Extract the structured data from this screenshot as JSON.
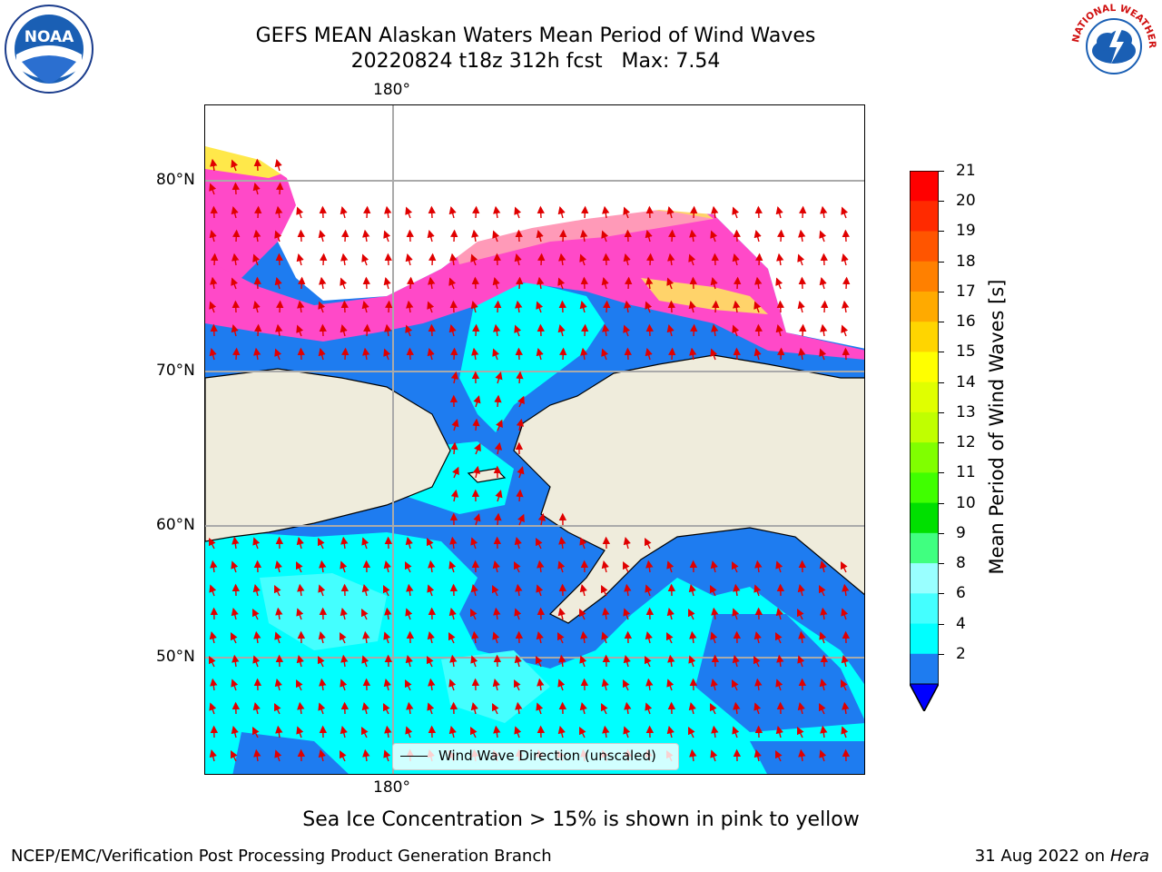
{
  "title": "GEFS MEAN Alaskan Waters Mean Period of Wind Waves",
  "subtitle": "20220824 t18z 312h fcst   Max: 7.54",
  "map": {
    "lon_label_top": "180°",
    "lon_label_bottom": "180°",
    "lat_labels": [
      "80°N",
      "70°N",
      "60°N",
      "50°N"
    ],
    "legend_label": "Wind Wave Direction (unscaled)",
    "land_color": "#efecdc",
    "ocean_colors": {
      "2-4": "#1e7cf0",
      "4-6": "#00ffff",
      "6-8": "#44ffff"
    },
    "ice_colors": [
      "#ff49c8",
      "#ff9ab8",
      "#ffd36a",
      "#ffe84a"
    ],
    "arrow_color": "#e00000"
  },
  "colorbar": {
    "title": "Mean Period of Wind Waves [s]",
    "ticks": [
      "21",
      "20",
      "19",
      "18",
      "17",
      "16",
      "15",
      "14",
      "13",
      "12",
      "11",
      "10",
      "9",
      "8",
      "6",
      "4",
      "2"
    ],
    "colors": [
      "#ff0000",
      "#ff2a00",
      "#ff5500",
      "#ff8000",
      "#ffaa00",
      "#ffd500",
      "#ffff00",
      "#e0ff00",
      "#c0ff00",
      "#80ff00",
      "#40ff00",
      "#00e000",
      "#40ff80",
      "#99ffff",
      "#44ffff",
      "#00ffff",
      "#1e7cf0"
    ],
    "underflow_color": "#0000ff"
  },
  "note": "Sea Ice Concentration > 15% is shown in pink to yellow",
  "footer": {
    "left": "NCEP/EMC/Verification Post Processing Product Generation Branch",
    "right_date": "31 Aug 2022 on",
    "right_machine": "Hera"
  },
  "logos": {
    "noaa_text": "NOAA",
    "nws_text": "NATIONAL WEATHER SERVICE"
  }
}
